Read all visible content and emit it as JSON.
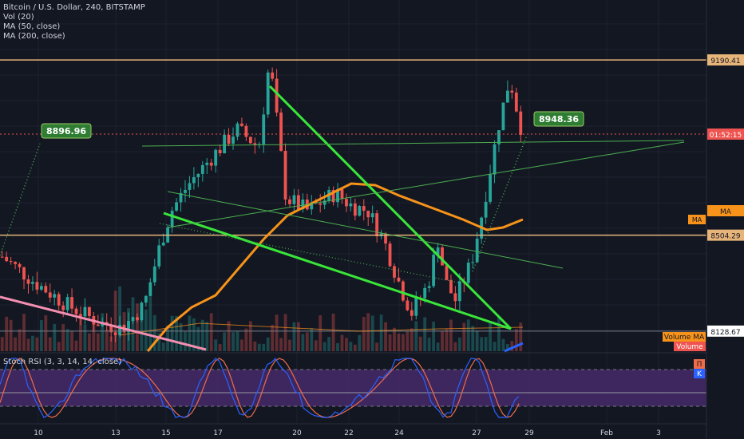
{
  "legend": {
    "title": "Bitcoin / U.S. Dollar, 240, BITSTAMP",
    "vol": "Vol (20)",
    "ma50": "MA (50, close)",
    "ma200": "MA (200, close)",
    "stoch": "Stoch RSI (3, 3, 14, 14, close)"
  },
  "price_axis": {
    "labels": [
      {
        "text": "9190.41",
        "color": "#e7b47a",
        "text_color": "#131722",
        "value": 9190.41
      },
      {
        "text": "01:52:15",
        "color": "#ef5350",
        "text_color": "#ffffff",
        "value": 8900
      },
      {
        "text": "MA",
        "color": "#f7931a",
        "text_color": "#131722",
        "value": 8600
      },
      {
        "text": "8504.29",
        "color": "#e7b47a",
        "text_color": "#131722",
        "value": 8504.29
      },
      {
        "text": "8128.67",
        "color": "#ffffff",
        "text_color": "#131722",
        "value": 8128.67
      }
    ],
    "volume_ma_label": "Volume MA",
    "volume_label": "Volume",
    "stoch_labels": [
      "Π",
      "K"
    ]
  },
  "time_axis": {
    "labels": [
      "10",
      "13",
      "15",
      "17",
      "20",
      "22",
      "24",
      "27",
      "29",
      "Feb",
      "3"
    ]
  },
  "callouts": [
    {
      "text": "8896.96",
      "price": 8896.96
    },
    {
      "text": "8948.36",
      "price": 8948.36
    }
  ],
  "colors": {
    "background": "#131722",
    "up": "#26a69a",
    "down": "#ef5350",
    "hline": "#e7b47a",
    "trend": "#39e639",
    "ma": "#f7931a",
    "stoch_k": "#2962ff",
    "stoch_d": "#ef6c4a",
    "stoch_band": "#4a2a6e"
  },
  "chart_data": {
    "type": "candlestick",
    "title": "Bitcoin / U.S. Dollar, 240, BITSTAMP",
    "ylim": [
      8050,
      9300
    ],
    "horizontal_levels": [
      9190.41,
      8504.29,
      8128.67
    ],
    "price_path": [
      [
        0,
        8420
      ],
      [
        6,
        8320
      ],
      [
        12,
        8230
      ],
      [
        18,
        8160
      ],
      [
        22,
        8140
      ],
      [
        26,
        8230
      ],
      [
        29,
        8470
      ],
      [
        31,
        8600
      ],
      [
        34,
        8700
      ],
      [
        38,
        8800
      ],
      [
        43,
        8920
      ],
      [
        47,
        8850
      ],
      [
        49,
        9190
      ],
      [
        52,
        8650
      ],
      [
        56,
        8600
      ],
      [
        61,
        8670
      ],
      [
        64,
        8620
      ],
      [
        67,
        8600
      ],
      [
        70,
        8480
      ],
      [
        73,
        8300
      ],
      [
        75,
        8200
      ],
      [
        78,
        8310
      ],
      [
        80,
        8500
      ],
      [
        81,
        8330
      ],
      [
        83,
        8250
      ],
      [
        86,
        8400
      ],
      [
        88,
        8600
      ],
      [
        91,
        8940
      ],
      [
        93,
        9120
      ],
      [
        95,
        8930
      ]
    ]
  }
}
